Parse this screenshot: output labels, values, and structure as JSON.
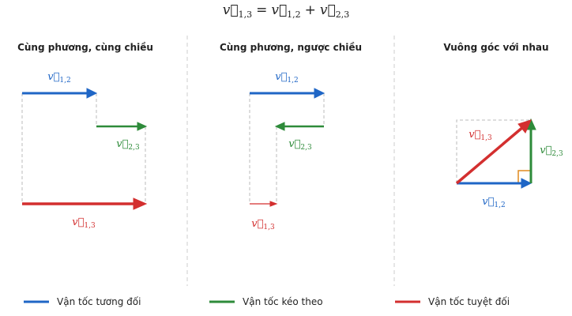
{
  "formula": {
    "terms": [
      {
        "symbol": "v⃗",
        "sub": "1,3"
      },
      {
        "symbol": "v⃗",
        "sub": "1,2"
      },
      {
        "symbol": "v⃗",
        "sub": "2,3"
      }
    ],
    "eq": "=",
    "plus": "+"
  },
  "panels": [
    {
      "title": "Cùng phương, cùng chiều",
      "labels": [
        {
          "symbol": "v⃗",
          "sub": "1,2"
        },
        {
          "symbol": "v⃗",
          "sub": "2,3"
        },
        {
          "symbol": "v⃗",
          "sub": "1,3"
        }
      ]
    },
    {
      "title": "Cùng phương, ngược chiều",
      "labels": [
        {
          "symbol": "v⃗",
          "sub": "1,2"
        },
        {
          "symbol": "v⃗",
          "sub": "2,3"
        },
        {
          "symbol": "v⃗",
          "sub": "1,3"
        }
      ]
    },
    {
      "title": "Vuông góc với nhau",
      "labels": [
        {
          "symbol": "v⃗",
          "sub": "1,2"
        },
        {
          "symbol": "v⃗",
          "sub": "2,3"
        },
        {
          "symbol": "v⃗",
          "sub": "1,3"
        }
      ]
    }
  ],
  "legend": [
    {
      "label": "Vận tốc tương đối",
      "color": "#1f66c6"
    },
    {
      "label": "Vận tốc kéo theo",
      "color": "#2e8b3a"
    },
    {
      "label": "Vận tốc tuyệt đối",
      "color": "#d32f2f"
    }
  ]
}
